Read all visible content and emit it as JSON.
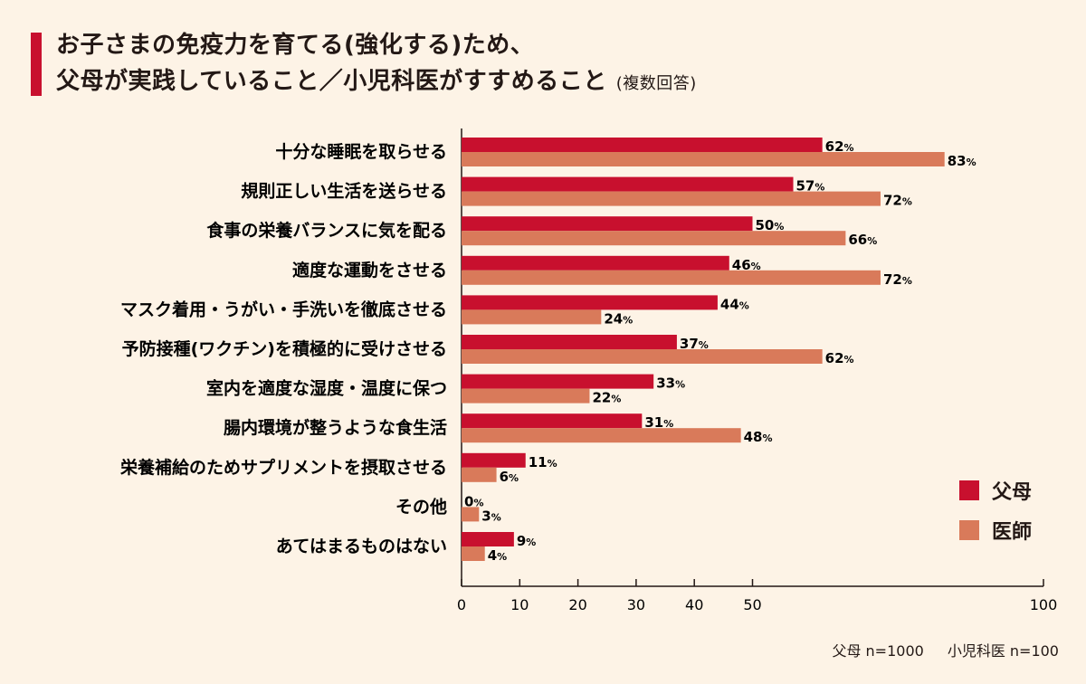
{
  "title": {
    "line1": "お子さまの免疫力を育てる(強化する)ため、",
    "line2": "父母が実践していること／小児科医がすすめること",
    "note": "(複数回答)"
  },
  "legend": [
    {
      "label": "父母",
      "color": "#c8102e"
    },
    {
      "label": "医師",
      "color": "#d97a5a"
    }
  ],
  "footnote": {
    "parents": "父母 n=1000",
    "doctors": "小児科医 n=100"
  },
  "chart_data": {
    "type": "bar",
    "orientation": "horizontal",
    "categories": [
      "十分な睡眠を取らせる",
      "規則正しい生活を送らせる",
      "食事の栄養バランスに気を配る",
      "適度な運動をさせる",
      "マスク着用・うがい・手洗いを徹底させる",
      "予防接種(ワクチン)を積極的に受けさせる",
      "室内を適度な湿度・温度に保つ",
      "腸内環境が整うような食生活",
      "栄養補給のためサプリメントを摂取させる",
      "その他",
      "あてはまるものはない"
    ],
    "series": [
      {
        "name": "父母",
        "color": "#c8102e",
        "values": [
          62,
          57,
          50,
          46,
          44,
          37,
          33,
          31,
          11,
          0,
          9
        ]
      },
      {
        "name": "医師",
        "color": "#d97a5a",
        "values": [
          83,
          72,
          66,
          72,
          24,
          62,
          22,
          48,
          6,
          3,
          4
        ]
      }
    ],
    "xlim": [
      0,
      100
    ],
    "x_ticks": [
      0,
      10,
      20,
      30,
      40,
      50,
      100
    ],
    "value_suffix": "%",
    "legend_position": "right",
    "grid": false
  }
}
